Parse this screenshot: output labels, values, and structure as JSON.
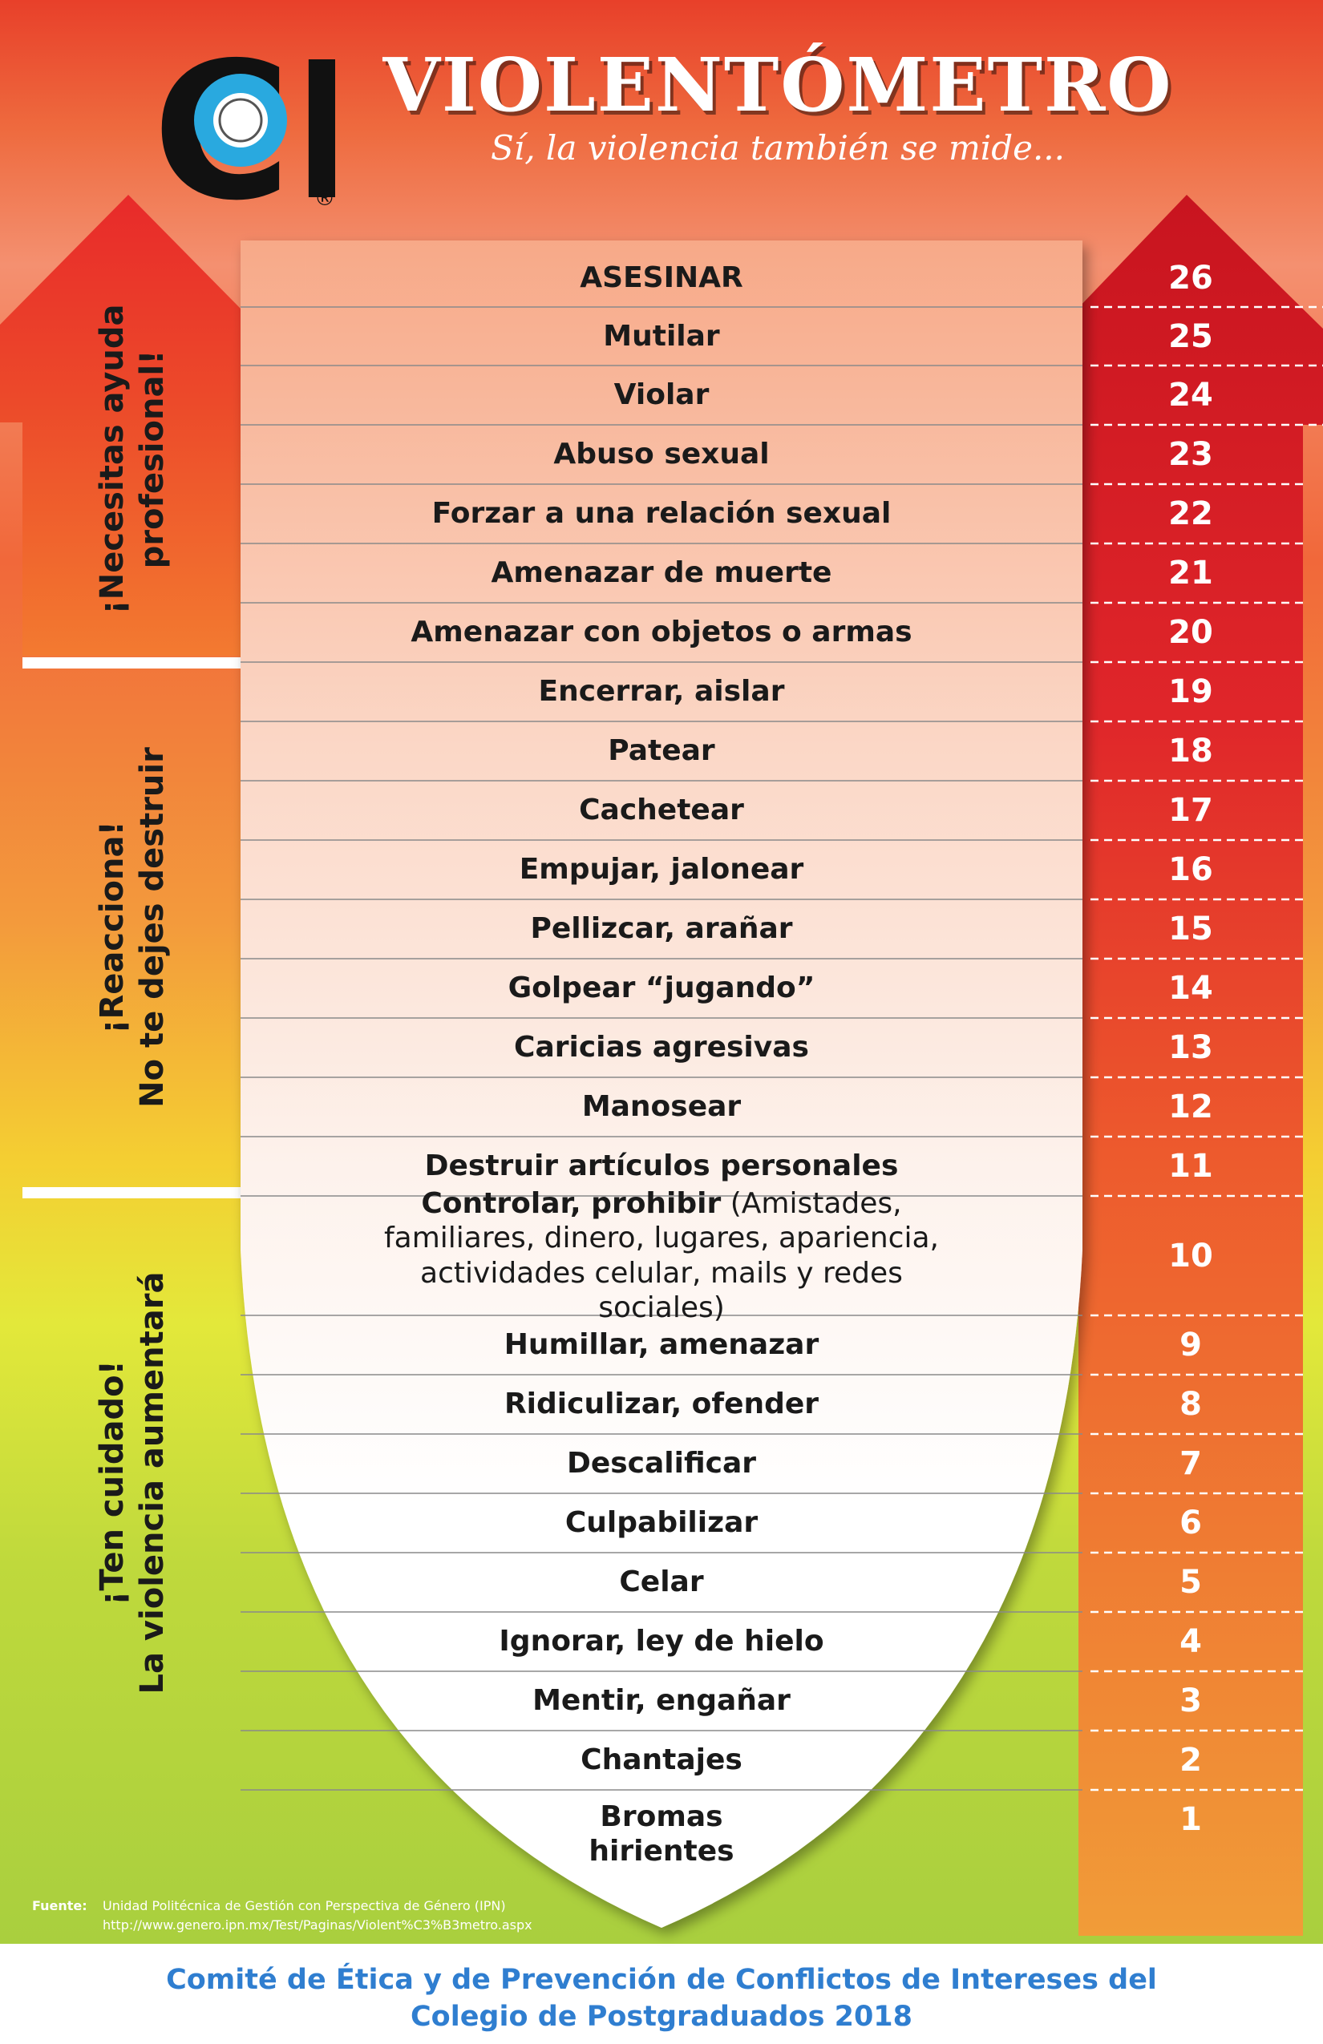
{
  "header": {
    "logo_text": "CP",
    "registered_mark": "®",
    "title": "VIOLENTÓMETRO",
    "subtitle": "Sí, la violencia también se mide..."
  },
  "bands": [
    {
      "line1": "¡Necesitas ayuda",
      "line2": "profesional!"
    },
    {
      "line1": "¡Reacciona!",
      "line2": "No te dejes destruir"
    },
    {
      "line1": "¡Ten cuidado!",
      "line2": "La violencia aumentará"
    }
  ],
  "levels": [
    {
      "number": "26",
      "action": "ASESINAR"
    },
    {
      "number": "25",
      "action": "Mutilar"
    },
    {
      "number": "24",
      "action": "Violar"
    },
    {
      "number": "23",
      "action": "Abuso sexual"
    },
    {
      "number": "22",
      "action": "Forzar a una relación sexual"
    },
    {
      "number": "21",
      "action": "Amenazar de muerte"
    },
    {
      "number": "20",
      "action": "Amenazar con objetos o armas"
    },
    {
      "number": "19",
      "action": "Encerrar, aislar"
    },
    {
      "number": "18",
      "action": "Patear"
    },
    {
      "number": "17",
      "action": "Cachetear"
    },
    {
      "number": "16",
      "action": "Empujar, jalonear"
    },
    {
      "number": "15",
      "action": "Pellizcar, arañar"
    },
    {
      "number": "14",
      "action": "Golpear “jugando”"
    },
    {
      "number": "13",
      "action": "Caricias agresivas"
    },
    {
      "number": "12",
      "action": "Manosear"
    },
    {
      "number": "11",
      "action": "Destruir artículos personales"
    },
    {
      "number": "10",
      "action": "Controlar, prohibir",
      "detail": " (Amistades, familiares, dinero,  lugares, apariencia, actividades celular, mails y redes sociales)"
    },
    {
      "number": "9",
      "action": "Humillar, amenazar"
    },
    {
      "number": "8",
      "action": "Ridiculizar, ofender"
    },
    {
      "number": "7",
      "action": "Descalificar"
    },
    {
      "number": "6",
      "action": "Culpabilizar"
    },
    {
      "number": "5",
      "action": "Celar"
    },
    {
      "number": "4",
      "action": "Ignorar, ley de hielo"
    },
    {
      "number": "3",
      "action": "Mentir, engañar"
    },
    {
      "number": "2",
      "action": "Chantajes"
    },
    {
      "number": "1",
      "action": "Bromas hirientes"
    }
  ],
  "source": {
    "label": "Fuente:",
    "line1": "Unidad Politécnica de Gestión con Perspectiva de Género (IPN)",
    "line2": "http://www.genero.ipn.mx/Test/Paginas/Violent%C3%B3metro.aspx"
  },
  "footer": {
    "line1": "Comité de Ética y de Prevención de Conflictos de Intereses del",
    "line2": "Colegio de Postgraduados 2018"
  },
  "colors": {
    "top": "#e8402a",
    "middle": "#f39a3c",
    "bottom": "#a9cf3e",
    "footer_text": "#2f7ed0"
  }
}
